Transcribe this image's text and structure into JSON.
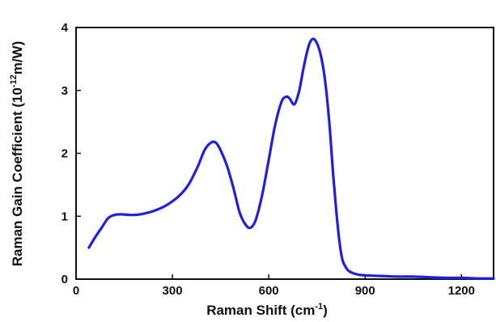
{
  "chart_data": {
    "type": "line",
    "title": "",
    "xlabel": {
      "text": "Raman Shift (cm",
      "sup": "-1",
      "suffix": ")"
    },
    "ylabel": {
      "text": "Raman Gain Coefficient (10",
      "sup": "-12",
      "suffix": "m/W)"
    },
    "xlim": [
      0,
      1300
    ],
    "ylim": [
      0,
      4
    ],
    "xticks": [
      0,
      300,
      600,
      900,
      1200
    ],
    "yticks": [
      0,
      1,
      2,
      3,
      4
    ],
    "grid": false,
    "legend": "none",
    "series": [
      {
        "color": "#1f1fe0",
        "x": [
          40,
          60,
          80,
          100,
          120,
          140,
          170,
          200,
          240,
          280,
          320,
          350,
          380,
          400,
          420,
          435,
          450,
          470,
          490,
          510,
          530,
          545,
          560,
          580,
          600,
          620,
          640,
          655,
          665,
          680,
          695,
          710,
          725,
          738,
          750,
          760,
          770,
          780,
          790,
          800,
          810,
          820,
          830,
          845,
          860,
          880,
          900,
          950,
          1000,
          1050,
          1100,
          1150,
          1200,
          1250,
          1300
        ],
        "y": [
          0.5,
          0.67,
          0.82,
          0.97,
          1.02,
          1.03,
          1.02,
          1.03,
          1.08,
          1.17,
          1.32,
          1.5,
          1.8,
          2.05,
          2.17,
          2.17,
          2.05,
          1.8,
          1.45,
          1.05,
          0.85,
          0.82,
          0.95,
          1.35,
          1.9,
          2.45,
          2.82,
          2.9,
          2.87,
          2.78,
          3.0,
          3.4,
          3.72,
          3.82,
          3.75,
          3.6,
          3.35,
          2.95,
          2.4,
          1.7,
          1.1,
          0.6,
          0.3,
          0.15,
          0.1,
          0.07,
          0.06,
          0.05,
          0.04,
          0.04,
          0.03,
          0.02,
          0.02,
          0.01,
          0.01
        ]
      }
    ]
  }
}
